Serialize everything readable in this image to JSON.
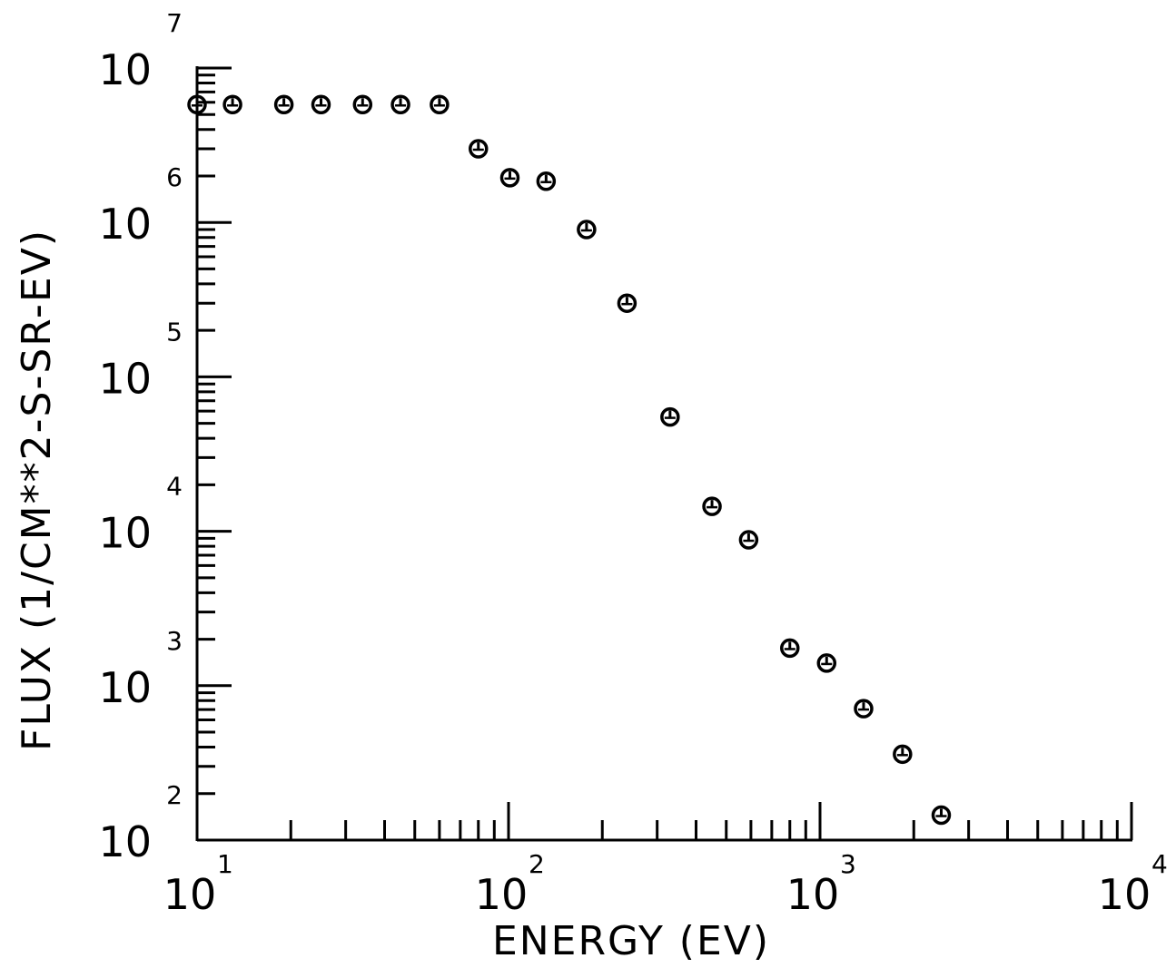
{
  "chart_data": {
    "type": "scatter",
    "xlabel": "ENERGY (EV)",
    "ylabel": "FLUX (1/CM**2-S-SR-EV)",
    "xscale": "log",
    "yscale": "log",
    "xlim": [
      10,
      10000
    ],
    "ylim": [
      100,
      10000000
    ],
    "grid": false,
    "legend": "none",
    "marker": "circle-with-tick",
    "x_ticks": [
      {
        "base": "10",
        "exp": "1"
      },
      {
        "base": "10",
        "exp": "2"
      },
      {
        "base": "10",
        "exp": "3"
      },
      {
        "base": "10",
        "exp": "4"
      }
    ],
    "y_ticks": [
      {
        "base": "10",
        "exp": "2"
      },
      {
        "base": "10",
        "exp": "3"
      },
      {
        "base": "10",
        "exp": "4"
      },
      {
        "base": "10",
        "exp": "5"
      },
      {
        "base": "10",
        "exp": "6"
      },
      {
        "base": "10",
        "exp": "7"
      }
    ],
    "series": [
      {
        "x": [
          10,
          13,
          19,
          25,
          34,
          45,
          60,
          80,
          101,
          132,
          178,
          240,
          330,
          450,
          590,
          800,
          1050,
          1380,
          1840,
          2450
        ],
        "y": [
          5800000,
          5800000,
          5800000,
          5800000,
          5800000,
          5800000,
          5800000,
          3000000,
          1950000,
          1850000,
          900000,
          300000,
          55000,
          14500,
          8800,
          1750,
          1400,
          710,
          360,
          145
        ]
      }
    ]
  }
}
